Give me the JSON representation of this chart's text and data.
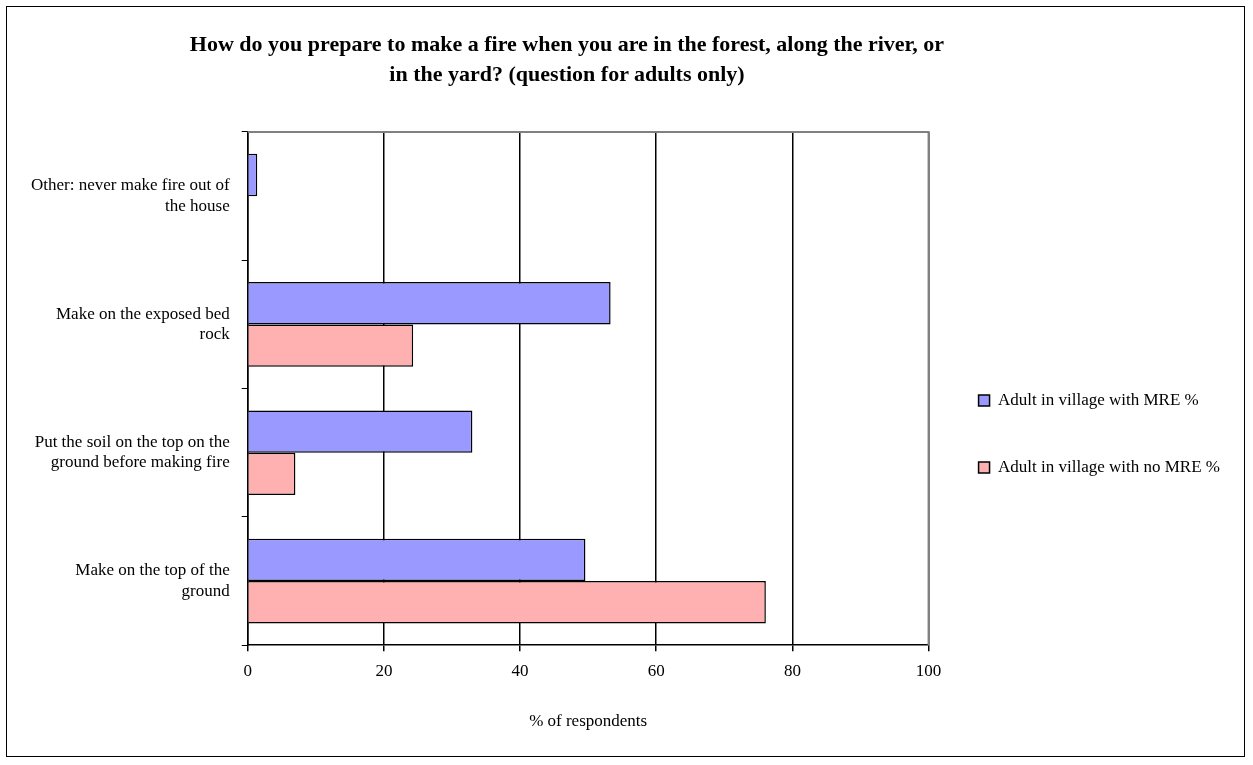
{
  "chart_data": {
    "type": "bar",
    "orientation": "horizontal",
    "title": "How do you prepare to make a fire when you are in the forest, along the river, or in the yard? (question for adults only)",
    "xlabel": "% of respondents",
    "categories": [
      "Other: never make fire out of the house",
      "Make on the exposed bed rock",
      "Put the soil on the top on the ground before making fire",
      "Make on the top of the ground"
    ],
    "series": [
      {
        "name": "Adult in village with MRE %",
        "color": "#9999ff",
        "values": [
          1.4,
          53.3,
          33.0,
          49.6
        ]
      },
      {
        "name": "Adult in village with no MRE %",
        "color": "#ffb0b0",
        "values": [
          null,
          24.3,
          7.0,
          76.1
        ]
      }
    ],
    "xlim": [
      0,
      100
    ],
    "xticks": [
      0,
      20,
      40,
      60,
      80,
      100
    ],
    "grid": "x",
    "legend": "right"
  }
}
